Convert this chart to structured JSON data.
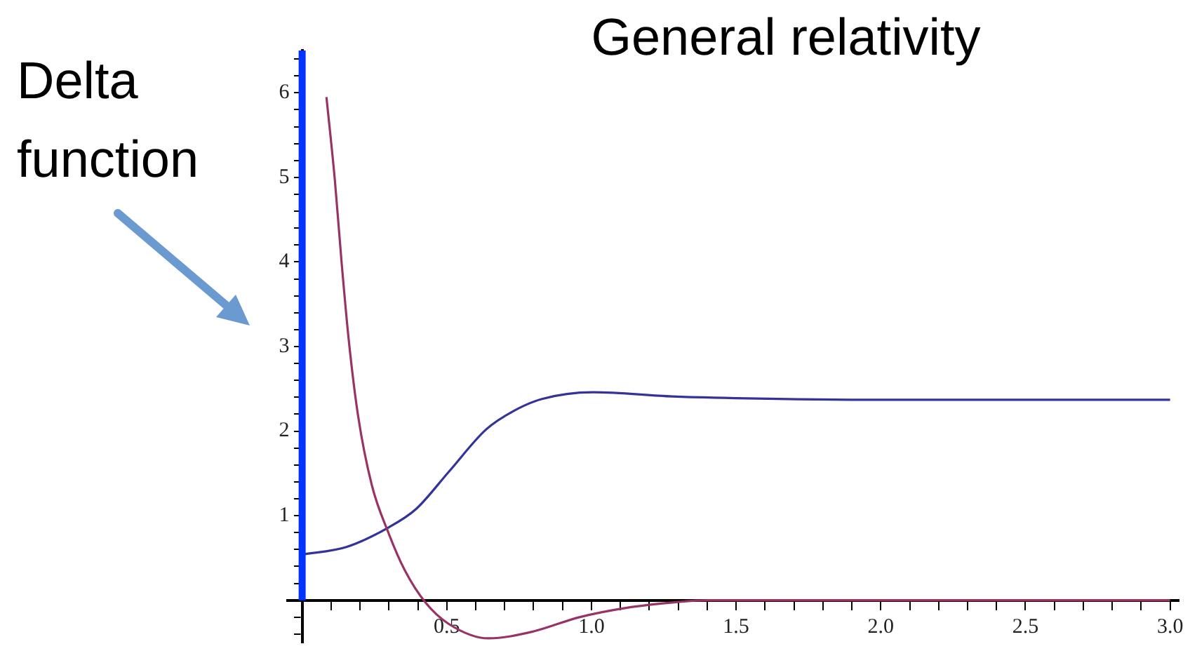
{
  "chart_data": {
    "type": "line",
    "title": "General relativity",
    "annotations": [
      "Delta function"
    ],
    "xlim": [
      -0.05,
      3.03
    ],
    "ylim": [
      -0.5,
      6.5
    ],
    "xticks": [
      {
        "value": 0,
        "label": null
      },
      {
        "value": 0.1,
        "label": null
      },
      {
        "value": 0.2,
        "label": null
      },
      {
        "value": 0.3,
        "label": null
      },
      {
        "value": 0.4,
        "label": null
      },
      {
        "value": 0.5,
        "label": "0.5"
      },
      {
        "value": 0.6,
        "label": null
      },
      {
        "value": 0.7,
        "label": null
      },
      {
        "value": 0.8,
        "label": null
      },
      {
        "value": 0.9,
        "label": null
      },
      {
        "value": 1,
        "label": "1.0"
      },
      {
        "value": 1.1,
        "label": null
      },
      {
        "value": 1.2,
        "label": null
      },
      {
        "value": 1.3,
        "label": null
      },
      {
        "value": 1.4,
        "label": null
      },
      {
        "value": 1.5,
        "label": "1.5"
      },
      {
        "value": 1.6,
        "label": null
      },
      {
        "value": 1.7,
        "label": null
      },
      {
        "value": 1.8,
        "label": null
      },
      {
        "value": 1.9,
        "label": null
      },
      {
        "value": 2,
        "label": "2.0"
      },
      {
        "value": 2.1,
        "label": null
      },
      {
        "value": 2.2,
        "label": null
      },
      {
        "value": 2.3,
        "label": null
      },
      {
        "value": 2.4,
        "label": null
      },
      {
        "value": 2.5,
        "label": "2.5"
      },
      {
        "value": 2.6,
        "label": null
      },
      {
        "value": 2.7,
        "label": null
      },
      {
        "value": 2.8,
        "label": null
      },
      {
        "value": 2.9,
        "label": null
      },
      {
        "value": 3,
        "label": "3.0"
      }
    ],
    "yticks": [
      {
        "value": -0.4,
        "label": null
      },
      {
        "value": -0.2,
        "label": null
      },
      {
        "value": 0.2,
        "label": null
      },
      {
        "value": 0.4,
        "label": null
      },
      {
        "value": 0.6,
        "label": null
      },
      {
        "value": 0.8,
        "label": null
      },
      1,
      {
        "value": 1.2,
        "label": null
      },
      {
        "value": 1.4,
        "label": null
      },
      {
        "value": 1.6,
        "label": null
      },
      {
        "value": 1.8,
        "label": null
      },
      2,
      {
        "value": 2.2,
        "label": null
      },
      {
        "value": 2.4,
        "label": null
      },
      {
        "value": 2.6,
        "label": null
      },
      {
        "value": 2.8,
        "label": null
      },
      3,
      {
        "value": 3.2,
        "label": null
      },
      {
        "value": 3.4,
        "label": null
      },
      {
        "value": 3.6,
        "label": null
      },
      {
        "value": 3.8,
        "label": null
      },
      4,
      {
        "value": 4.2,
        "label": null
      },
      {
        "value": 4.4,
        "label": null
      },
      {
        "value": 4.6,
        "label": null
      },
      {
        "value": 4.8,
        "label": null
      },
      5,
      {
        "value": 5.2,
        "label": null
      },
      {
        "value": 5.4,
        "label": null
      },
      {
        "value": 5.6,
        "label": null
      },
      {
        "value": 5.8,
        "label": null
      },
      6,
      {
        "value": 6.2,
        "label": null
      },
      {
        "value": 6.4,
        "label": null
      }
    ],
    "grid": false,
    "marker": "none",
    "line_style": "solid",
    "legend": false,
    "series": [
      {
        "color": "#0033ff",
        "x": [
          0,
          0
        ],
        "values": [
          0,
          6.5
        ]
      },
      {
        "color": "#993366",
        "x": [
          0.084,
          0.113,
          0.137,
          0.161,
          0.193,
          0.241,
          0.298,
          0.354,
          0.427,
          0.507,
          0.644,
          0.797,
          0.958,
          1.119,
          1.3,
          1.4,
          2,
          3
        ],
        "values": [
          5.95,
          4.97,
          3.97,
          3.08,
          2.19,
          1.36,
          0.8,
          0.36,
          -0.03,
          -0.28,
          -0.45,
          -0.37,
          -0.2,
          -0.09,
          -0.02,
          0,
          0,
          0
        ]
      },
      {
        "color": "#333399",
        "x": [
          0,
          0.153,
          0.298,
          0.394,
          0.507,
          0.636,
          0.732,
          0.829,
          1.006,
          1.28,
          1.5,
          2,
          2.5,
          3
        ],
        "values": [
          0.54,
          0.63,
          0.86,
          1.08,
          1.52,
          2.02,
          2.24,
          2.38,
          2.46,
          2.41,
          2.39,
          2.37,
          2.37,
          2.37
        ]
      }
    ]
  }
}
